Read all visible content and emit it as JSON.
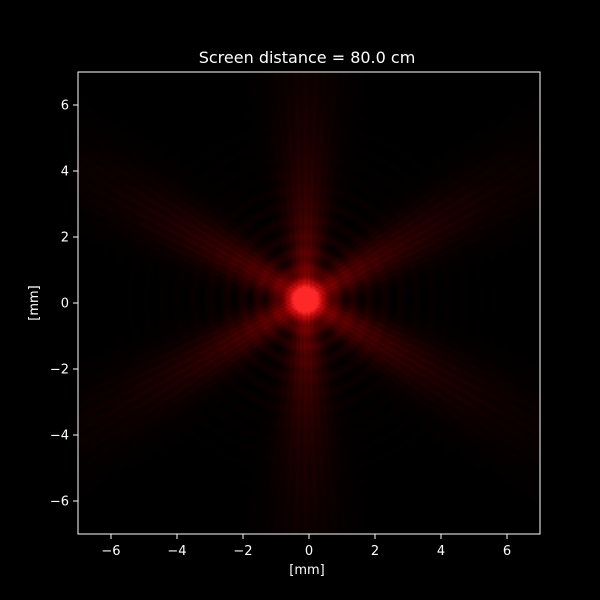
{
  "chart_data": {
    "type": "heatmap",
    "title": "Screen distance = 80.0 cm",
    "xlabel": "[mm]",
    "ylabel": "[mm]",
    "xlim": [
      -7,
      7
    ],
    "ylim": [
      -7,
      7
    ],
    "xticks": [
      -6,
      -4,
      -2,
      0,
      2,
      4,
      6
    ],
    "yticks": [
      -6,
      -4,
      -2,
      0,
      2,
      4,
      6
    ],
    "xtick_labels": [
      "−6",
      "−4",
      "−2",
      "0",
      "2",
      "4",
      "6"
    ],
    "ytick_labels": [
      "−6",
      "−4",
      "−2",
      "0",
      "2",
      "4",
      "6"
    ],
    "colormap": "black-to-red",
    "description_values": {
      "peak_center": [
        -0.1,
        0.1
      ],
      "spike_angles_deg": [
        90,
        210,
        330,
        30,
        150,
        270
      ]
    },
    "colors": {
      "background": "#000000",
      "axes": "#ffffff",
      "intensity": "#ff0000"
    }
  }
}
